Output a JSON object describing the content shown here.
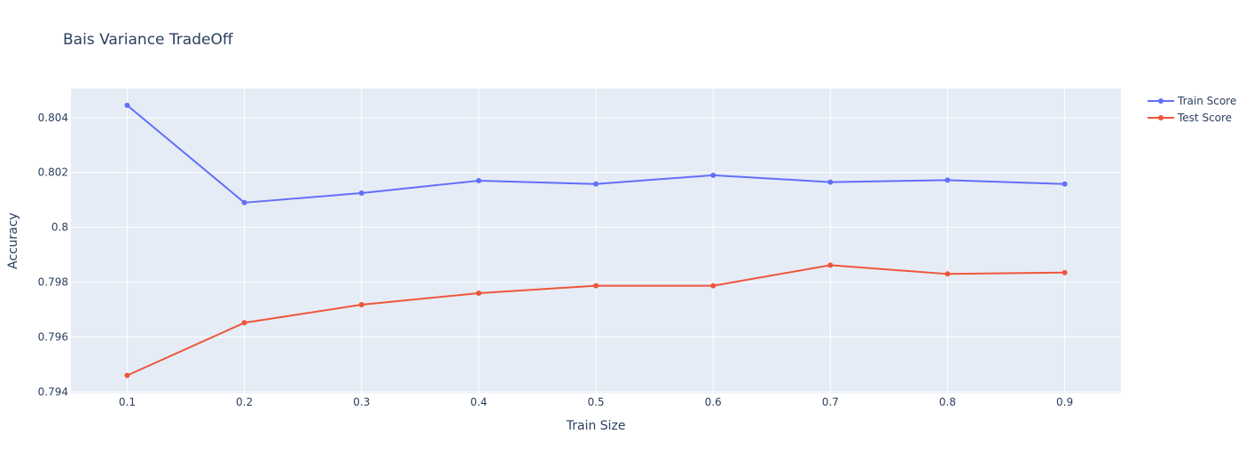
{
  "chart_data": {
    "type": "line",
    "title": "Bais Variance TradeOff",
    "xlabel": "Train Size",
    "ylabel": "Accuracy",
    "x": [
      0.1,
      0.2,
      0.3,
      0.4,
      0.5,
      0.6,
      0.7,
      0.8,
      0.9
    ],
    "x_tick_labels": [
      "0.1",
      "0.2",
      "0.3",
      "0.4",
      "0.5",
      "0.6",
      "0.7",
      "0.8",
      "0.9"
    ],
    "xlim": [
      0.052,
      0.948
    ],
    "y_ticks": [
      0.794,
      0.796,
      0.798,
      0.8,
      0.802,
      0.804
    ],
    "y_tick_labels": [
      "0.794",
      "0.796",
      "0.798",
      "0.8",
      "0.802",
      "0.804"
    ],
    "ylim": [
      0.79395,
      0.80506
    ],
    "grid": true,
    "legend_position": "top-right",
    "plot_background": "#e5ecf6",
    "gridline_color": "#ffffff",
    "series": [
      {
        "name": "Train Score",
        "color": "#636efa",
        "values": [
          0.80445,
          0.8009,
          0.80125,
          0.8017,
          0.80158,
          0.8019,
          0.80165,
          0.80172,
          0.80158
        ]
      },
      {
        "name": "Test Score",
        "color": "#ef553b",
        "values": [
          0.7946,
          0.79652,
          0.79718,
          0.7976,
          0.79787,
          0.79787,
          0.79862,
          0.7983,
          0.79835
        ]
      }
    ]
  }
}
